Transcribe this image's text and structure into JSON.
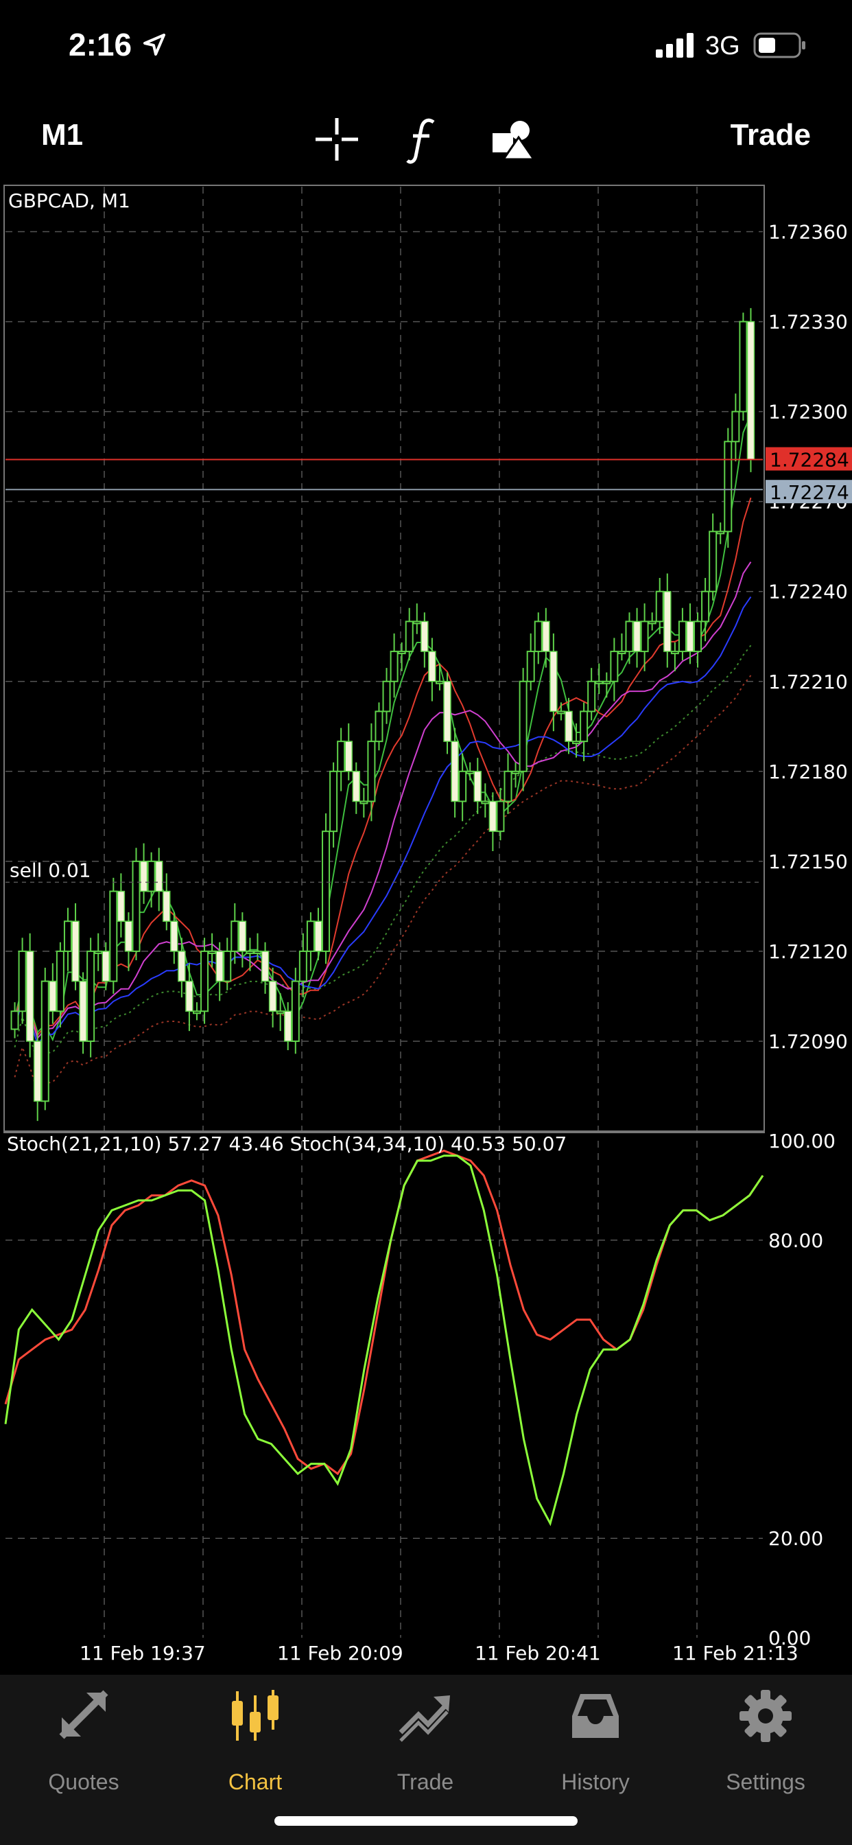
{
  "status_bar": {
    "time": "2:16",
    "network": "3G"
  },
  "toolbar": {
    "timeframe": "M1",
    "trade": "Trade",
    "icons": [
      "crosshair-icon",
      "function-icon",
      "objects-icon"
    ]
  },
  "chart_data": {
    "type": "candlestick",
    "title": "GBPCAD, M1",
    "price_labels": [
      "1.72360",
      "1.72330",
      "1.72300",
      "1.72270",
      "1.72240",
      "1.72210",
      "1.72180",
      "1.72150",
      "1.72120",
      "1.72090"
    ],
    "ylim": [
      1.7206,
      1.72375
    ],
    "bid_label": "1.72284",
    "ask_label": "1.72274",
    "bid": 1.72284,
    "ask": 1.72274,
    "order_label": "sell 0.01",
    "order_price": 1.72143,
    "time_labels": [
      "11 Feb 19:37",
      "11 Feb 20:09",
      "11 Feb 20:41",
      "11 Feb 21:13"
    ],
    "closes": [
      1.721,
      1.7212,
      1.7209,
      1.7207,
      1.7211,
      1.721,
      1.7212,
      1.7213,
      1.7211,
      1.7209,
      1.7212,
      1.7212,
      1.7211,
      1.7214,
      1.7213,
      1.7212,
      1.7215,
      1.7214,
      1.7215,
      1.7214,
      1.7213,
      1.7212,
      1.7211,
      1.721,
      1.721,
      1.7212,
      1.7212,
      1.7211,
      1.7212,
      1.7213,
      1.7212,
      1.7212,
      1.7212,
      1.7211,
      1.721,
      1.721,
      1.7209,
      1.7211,
      1.7212,
      1.7213,
      1.7212,
      1.7216,
      1.7218,
      1.7219,
      1.7218,
      1.7217,
      1.7217,
      1.7219,
      1.722,
      1.7221,
      1.7222,
      1.7222,
      1.7223,
      1.7223,
      1.7222,
      1.7221,
      1.7221,
      1.7219,
      1.7217,
      1.7218,
      1.7218,
      1.7217,
      1.7217,
      1.7216,
      1.7217,
      1.7218,
      1.7218,
      1.7221,
      1.7222,
      1.7223,
      1.7222,
      1.722,
      1.722,
      1.7219,
      1.7219,
      1.722,
      1.7221,
      1.7221,
      1.7221,
      1.7222,
      1.7222,
      1.7223,
      1.7222,
      1.7223,
      1.7223,
      1.7224,
      1.7222,
      1.7222,
      1.7223,
      1.7222,
      1.7223,
      1.7224,
      1.7226,
      1.7226,
      1.7229,
      1.723,
      1.7233,
      1.72284
    ],
    "stoch_label": "Stoch(21,21,10) 57.27 43.46 Stoch(34,34,10) 40.53 50.07",
    "stoch_levels": [
      "100.00",
      "80.00",
      "20.00",
      "0.00"
    ],
    "stoch_main": [
      43,
      62,
      66,
      63,
      60,
      64,
      73,
      82,
      86,
      87,
      88,
      88,
      89,
      90,
      90,
      88,
      74,
      58,
      45,
      40,
      39,
      36,
      33,
      35,
      35,
      31,
      38,
      54,
      68,
      80,
      91,
      96,
      96,
      97,
      97,
      95,
      86,
      73,
      56,
      40,
      28,
      23,
      33,
      45,
      54,
      58,
      58,
      60,
      67,
      76,
      83,
      86,
      86,
      84,
      85,
      87,
      89,
      93
    ],
    "stoch_signal": [
      47,
      56,
      58,
      60,
      61,
      62,
      66,
      74,
      83,
      86,
      87,
      89,
      89,
      91,
      92,
      91,
      85,
      73,
      58,
      52,
      47,
      42,
      36,
      34,
      35,
      33,
      37,
      50,
      65,
      80,
      91,
      96,
      97,
      98,
      97,
      96,
      93,
      86,
      75,
      66,
      61,
      60,
      62,
      64,
      64,
      60,
      58,
      60,
      66,
      75,
      83,
      86,
      86,
      84,
      85,
      87,
      89,
      93
    ]
  },
  "tabs": [
    {
      "label": "Quotes",
      "icon": "quotes-icon"
    },
    {
      "label": "Chart",
      "icon": "chart-icon",
      "active": true
    },
    {
      "label": "Trade",
      "icon": "trade-icon"
    },
    {
      "label": "History",
      "icon": "history-icon"
    },
    {
      "label": "Settings",
      "icon": "settings-icon"
    }
  ]
}
